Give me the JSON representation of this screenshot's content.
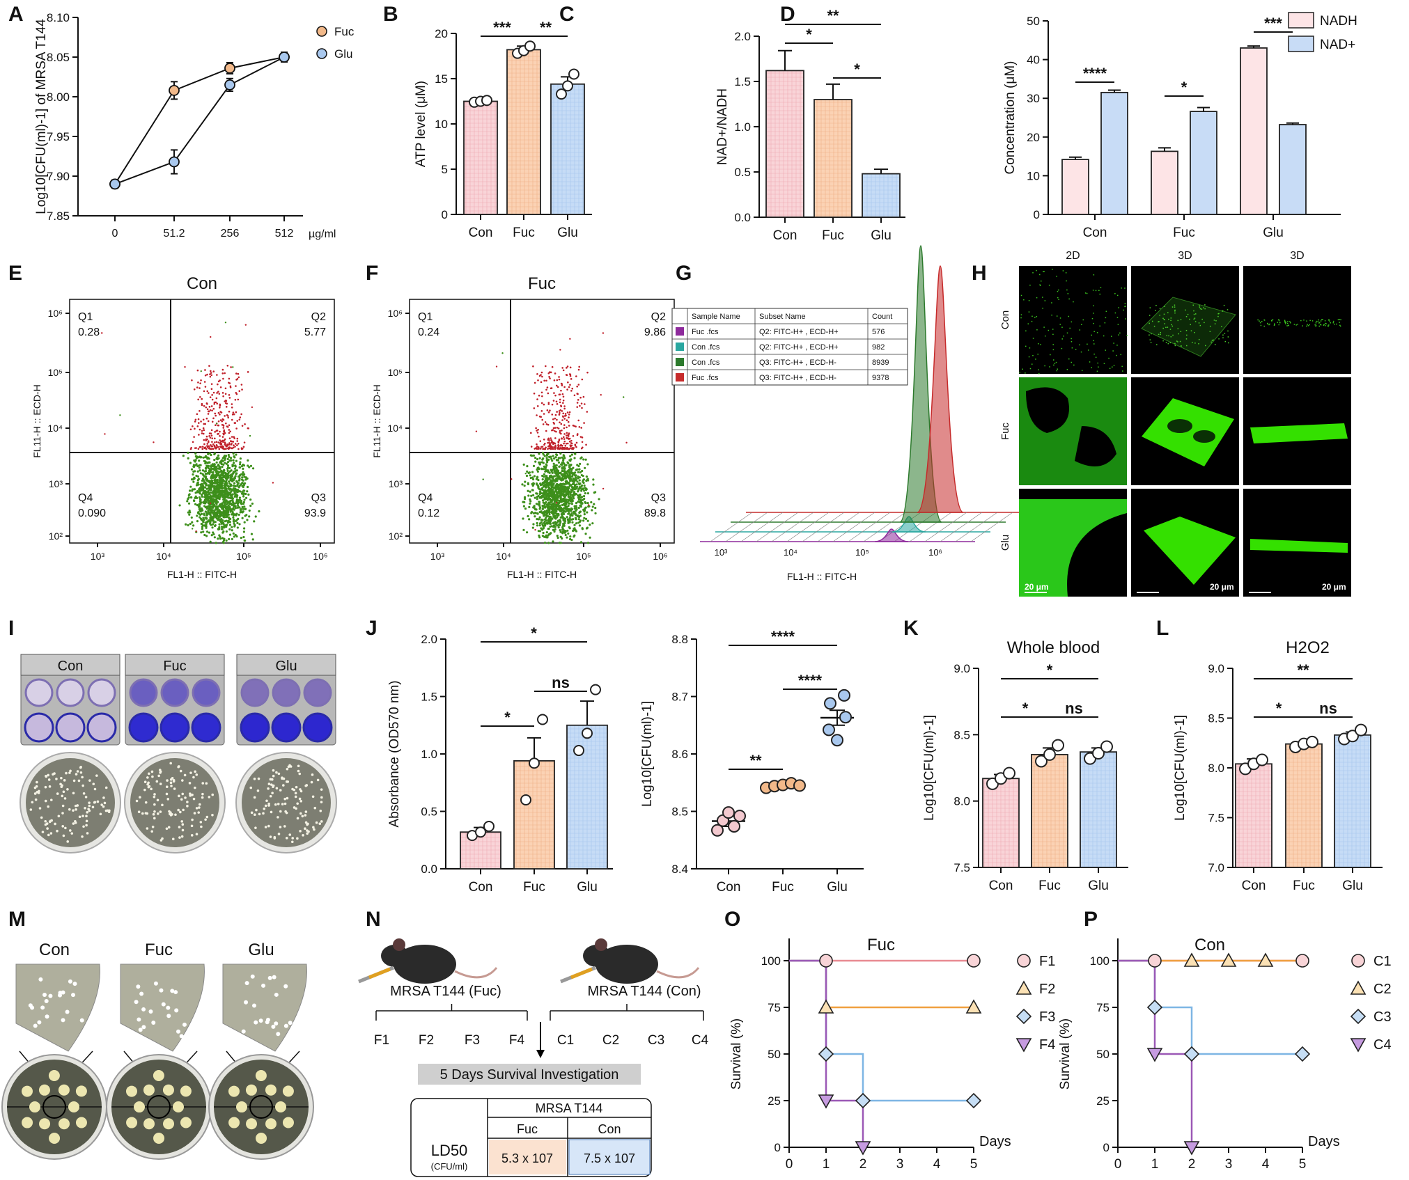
{
  "panel_letters": [
    "A",
    "B",
    "C",
    "D",
    "E",
    "F",
    "G",
    "H",
    "I",
    "J",
    "K",
    "L",
    "M",
    "N",
    "O",
    "P"
  ],
  "colors": {
    "con": "#f9d4d8",
    "fuc": "#fbd2b4",
    "glu": "#c6dcf6",
    "stroke": "#222222",
    "dot_fuc": "#f2b98a",
    "dot_glu": "#a9c8ee",
    "red": "#c0202a",
    "green": "#3d8f1b",
    "bright_green": "#34e000"
  },
  "chart_data": [
    {
      "id": "A",
      "type": "line",
      "x": [
        "0",
        "51.2",
        "256",
        "512"
      ],
      "xunit": "µg/ml",
      "ylabel": "Log10[CFU(ml)-1] of MRSA T144",
      "ylim": [
        7.85,
        8.1
      ],
      "yticks": [
        "7.85",
        "7.90",
        "7.95",
        "8.00",
        "8.05",
        "8.10"
      ],
      "series": [
        {
          "name": "Fuc",
          "values": [
            7.89,
            8.008,
            8.036,
            8.05
          ],
          "err": [
            0.005,
            0.011,
            0.007,
            0.006
          ]
        },
        {
          "name": "Glu",
          "values": [
            7.89,
            7.918,
            8.015,
            8.05
          ],
          "err": [
            0.005,
            0.015,
            0.008,
            0.006
          ]
        }
      ],
      "legend": "top-right"
    },
    {
      "id": "B",
      "type": "bar",
      "categories": [
        "Con",
        "Fuc",
        "Glu"
      ],
      "values": [
        12.5,
        18.2,
        14.4
      ],
      "err": [
        0.15,
        0.4,
        0.8
      ],
      "ylabel": "ATP level (μM)",
      "ylim": [
        0,
        20
      ],
      "yticks": [
        "0",
        "5",
        "10",
        "15",
        "20"
      ],
      "points": [
        [
          12.4,
          12.5,
          12.6
        ],
        [
          17.8,
          18.1,
          18.6
        ],
        [
          13.3,
          14.2,
          15.5
        ]
      ],
      "sig": [
        {
          "a": 0,
          "b": 1,
          "label": "***"
        },
        {
          "a": 1,
          "b": 2,
          "label": "**"
        }
      ]
    },
    {
      "id": "C",
      "type": "bar",
      "categories": [
        "Con",
        "Fuc",
        "Glu"
      ],
      "values": [
        1.62,
        1.3,
        0.48
      ],
      "err": [
        0.22,
        0.17,
        0.05
      ],
      "ylabel": "NAD+/NADH",
      "ylim": [
        0,
        2.0
      ],
      "yticks": [
        "0.0",
        "0.5",
        "1.0",
        "1.5",
        "2.0"
      ],
      "sig": [
        {
          "a": 0,
          "b": 2,
          "label": "**",
          "level": 2
        },
        {
          "a": 0,
          "b": 1,
          "label": "*",
          "level": 1
        },
        {
          "a": 1,
          "b": 2,
          "label": "*",
          "level": 0
        }
      ]
    },
    {
      "id": "D",
      "type": "bar",
      "categories": [
        "Con",
        "Fuc",
        "Glu"
      ],
      "ylabel": "Concentration (μM)",
      "ylim": [
        0,
        50
      ],
      "yticks": [
        "0",
        "10",
        "20",
        "30",
        "40",
        "50"
      ],
      "series": [
        {
          "name": "NADH",
          "values": [
            14.2,
            16.3,
            43.0
          ],
          "err": [
            0.6,
            0.9,
            0.5
          ]
        },
        {
          "name": "NAD+",
          "values": [
            31.5,
            26.6,
            23.2
          ],
          "err": [
            0.6,
            1.0,
            0.4
          ]
        }
      ],
      "sig": [
        "****",
        "*",
        "***"
      ],
      "legend": "top-right"
    },
    {
      "id": "J1",
      "type": "bar",
      "categories": [
        "Con",
        "Fuc",
        "Glu"
      ],
      "values": [
        0.32,
        0.94,
        1.25
      ],
      "err": [
        0.04,
        0.2,
        0.21
      ],
      "ylabel": "Absorbance (OD570 nm)",
      "ylim": [
        0,
        2.0
      ],
      "yticks": [
        "0.0",
        "0.5",
        "1.0",
        "1.5",
        "2.0"
      ],
      "points": [
        [
          0.29,
          0.32,
          0.37
        ],
        [
          0.6,
          0.92,
          1.3
        ],
        [
          1.03,
          1.18,
          1.56
        ]
      ],
      "sig": [
        {
          "a": 0,
          "b": 2,
          "label": "*",
          "level": 2
        },
        {
          "a": 1,
          "b": 2,
          "label": "ns",
          "level": 1
        },
        {
          "a": 0,
          "b": 1,
          "label": "*",
          "level": 0
        }
      ]
    },
    {
      "id": "J2",
      "type": "scatter",
      "categories": [
        "Con",
        "Fuc",
        "Glu"
      ],
      "values": [
        8.483,
        8.545,
        8.663
      ],
      "err": [
        0.009,
        0.003,
        0.013
      ],
      "ylabel": "Log10[CFU(ml)-1]",
      "ylim": [
        8.4,
        8.8
      ],
      "yticks": [
        "8.4",
        "8.5",
        "8.6",
        "8.7",
        "8.8"
      ],
      "points": [
        [
          8.467,
          8.474,
          8.484,
          8.492,
          8.498
        ],
        [
          8.541,
          8.544,
          8.546,
          8.549,
          8.545
        ],
        [
          8.624,
          8.642,
          8.664,
          8.688,
          8.702
        ]
      ],
      "sig": [
        {
          "a": 0,
          "b": 2,
          "label": "****",
          "level": 2
        },
        {
          "a": 1,
          "b": 2,
          "label": "****",
          "level": 1
        },
        {
          "a": 0,
          "b": 1,
          "label": "**",
          "level": 0
        }
      ]
    },
    {
      "id": "K",
      "type": "bar",
      "title": "Whole blood",
      "categories": [
        "Con",
        "Fuc",
        "Glu"
      ],
      "values": [
        8.17,
        8.35,
        8.37
      ],
      "err": [
        0.03,
        0.05,
        0.03
      ],
      "ylabel": "Log10[CFU(ml)-1]",
      "ylim": [
        7.5,
        9.0
      ],
      "yticks": [
        "7.5",
        "8.0",
        "8.5",
        "9.0"
      ],
      "points": [
        [
          8.13,
          8.17,
          8.21
        ],
        [
          8.3,
          8.35,
          8.42
        ],
        [
          8.32,
          8.36,
          8.41
        ]
      ],
      "sig": [
        {
          "a": 0,
          "b": 2,
          "label": "*",
          "level": 1
        },
        {
          "a": 0,
          "b": 1,
          "label": "*",
          "level": 0
        },
        {
          "a": 1,
          "b": 2,
          "label": "ns",
          "level": 0
        }
      ]
    },
    {
      "id": "L",
      "type": "bar",
      "title": "H2O2",
      "categories": [
        "Con",
        "Fuc",
        "Glu"
      ],
      "values": [
        8.04,
        8.24,
        8.33
      ],
      "err": [
        0.05,
        0.02,
        0.03
      ],
      "ylabel": "Log10[CFU(ml)-1]",
      "ylim": [
        7.0,
        9.0
      ],
      "yticks": [
        "7.0",
        "7.5",
        "8.0",
        "8.5",
        "9.0"
      ],
      "points": [
        [
          7.99,
          8.04,
          8.08
        ],
        [
          8.21,
          8.24,
          8.26
        ],
        [
          8.29,
          8.32,
          8.38
        ]
      ],
      "sig": [
        {
          "a": 0,
          "b": 2,
          "label": "**",
          "level": 1
        },
        {
          "a": 0,
          "b": 1,
          "label": "*",
          "level": 0
        },
        {
          "a": 1,
          "b": 2,
          "label": "ns",
          "level": 0
        }
      ]
    },
    {
      "id": "O",
      "type": "line",
      "title": "Fuc",
      "xlabel": "Days",
      "ylabel": "Survival (%)",
      "xlim": [
        0,
        5
      ],
      "ylim": [
        0,
        100
      ],
      "xticks": [
        "0",
        "1",
        "2",
        "3",
        "4",
        "5"
      ],
      "yticks": [
        "0",
        "25",
        "50",
        "75",
        "100"
      ],
      "series": [
        {
          "name": "F1",
          "steps": [
            [
              0,
              100
            ],
            [
              5,
              100
            ]
          ],
          "markers": [
            [
              1,
              100
            ],
            [
              5,
              100
            ]
          ]
        },
        {
          "name": "F2",
          "steps": [
            [
              0,
              100
            ],
            [
              1,
              100
            ],
            [
              1,
              75
            ],
            [
              5,
              75
            ]
          ],
          "markers": [
            [
              1,
              75
            ],
            [
              5,
              75
            ]
          ]
        },
        {
          "name": "F3",
          "steps": [
            [
              0,
              100
            ],
            [
              1,
              100
            ],
            [
              1,
              50
            ],
            [
              2,
              50
            ],
            [
              2,
              25
            ],
            [
              5,
              25
            ]
          ],
          "markers": [
            [
              1,
              50
            ],
            [
              2,
              25
            ],
            [
              5,
              25
            ]
          ]
        },
        {
          "name": "F4",
          "steps": [
            [
              0,
              100
            ],
            [
              1,
              100
            ],
            [
              1,
              25
            ],
            [
              2,
              25
            ],
            [
              2,
              0
            ]
          ],
          "markers": [
            [
              1,
              25
            ],
            [
              2,
              0
            ]
          ]
        }
      ]
    },
    {
      "id": "P",
      "type": "line",
      "title": "Con",
      "xlabel": "Days",
      "ylabel": "Survival (%)",
      "xlim": [
        0,
        5
      ],
      "ylim": [
        0,
        100
      ],
      "xticks": [
        "0",
        "1",
        "2",
        "3",
        "4",
        "5"
      ],
      "yticks": [
        "0",
        "25",
        "50",
        "75",
        "100"
      ],
      "series": [
        {
          "name": "C1",
          "steps": [
            [
              0,
              100
            ],
            [
              5,
              100
            ]
          ],
          "markers": [
            [
              1,
              100
            ],
            [
              5,
              100
            ]
          ]
        },
        {
          "name": "C2",
          "steps": [
            [
              0,
              100
            ],
            [
              5,
              100
            ]
          ],
          "markers": [
            [
              2,
              100
            ],
            [
              3,
              100
            ],
            [
              4,
              100
            ]
          ]
        },
        {
          "name": "C3",
          "steps": [
            [
              0,
              100
            ],
            [
              1,
              100
            ],
            [
              1,
              75
            ],
            [
              2,
              75
            ],
            [
              2,
              50
            ],
            [
              5,
              50
            ]
          ],
          "markers": [
            [
              1,
              75
            ],
            [
              2,
              50
            ],
            [
              5,
              50
            ]
          ]
        },
        {
          "name": "C4",
          "steps": [
            [
              0,
              100
            ],
            [
              1,
              100
            ],
            [
              1,
              50
            ],
            [
              2,
              50
            ],
            [
              2,
              0
            ]
          ],
          "markers": [
            [
              1,
              50
            ],
            [
              2,
              0
            ]
          ]
        }
      ]
    }
  ],
  "flow": {
    "E": {
      "title": "Con",
      "q1": "Q1",
      "q1v": "0.28",
      "q2": "Q2",
      "q2v": "5.77",
      "q3": "Q3",
      "q3v": "93.9",
      "q4": "Q4",
      "q4v": "0.090"
    },
    "F": {
      "title": "Fuc",
      "q1": "Q1",
      "q1v": "0.24",
      "q2": "Q2",
      "q2v": "9.86",
      "q3": "Q3",
      "q3v": "89.8",
      "q4": "Q4",
      "q4v": "0.12"
    },
    "xlabel": "FL1-H :: FITC-H",
    "ylabel": "FL11-H :: ECD-H",
    "ticks": [
      "10³",
      "10⁴",
      "10⁵",
      "10⁶"
    ],
    "yticks": [
      "10²",
      "10³",
      "10⁴",
      "10⁵",
      "10⁶"
    ]
  },
  "histogram": {
    "xlabel": "FL1-H :: FITC-H",
    "ticks": [
      "10³",
      "10⁴",
      "10⁵",
      "10⁶"
    ],
    "headers": [
      "Sample Name",
      "Subset Name",
      "Count"
    ],
    "rows": [
      {
        "sample": "Fuc  .fcs",
        "subset": "Q2: FITC-H+ , ECD-H+",
        "count": "576",
        "color": "#8e2a9c"
      },
      {
        "sample": "Con  .fcs",
        "subset": "Q2: FITC-H+ , ECD-H+",
        "count": "982",
        "color": "#2aa7a0"
      },
      {
        "sample": "Con  .fcs",
        "subset": "Q3: FITC-H+ , ECD-H-",
        "count": "8939",
        "color": "#2d7a2d"
      },
      {
        "sample": "Fuc  .fcs",
        "subset": "Q3: FITC-H+ , ECD-H-",
        "count": "9378",
        "color": "#c62b2b"
      }
    ]
  },
  "confocal": {
    "cols": [
      "2D",
      "3D",
      "3D"
    ],
    "rows": [
      "Con",
      "Fuc",
      "Glu"
    ],
    "scale": "20 μm"
  },
  "plates": {
    "labels": [
      "Con",
      "Fuc",
      "Glu"
    ]
  },
  "plates_m": {
    "labels": [
      "Con",
      "Fuc",
      "Glu"
    ]
  },
  "mouse": {
    "left": "MRSA T144 (Fuc)",
    "right": "MRSA T144 (Con)",
    "f": [
      "F1",
      "F2",
      "F3",
      "F4"
    ],
    "c": [
      "C1",
      "C2",
      "C3",
      "C4"
    ],
    "banner": "5 Days Survival Investigation",
    "table_head": "MRSA T144",
    "col_fuc": "Fuc",
    "col_con": "Con",
    "ld": "LD50",
    "ld_unit": "(CFU/ml)",
    "v_fuc": "5.3 x 107",
    "v_con": "7.5 x 107"
  }
}
